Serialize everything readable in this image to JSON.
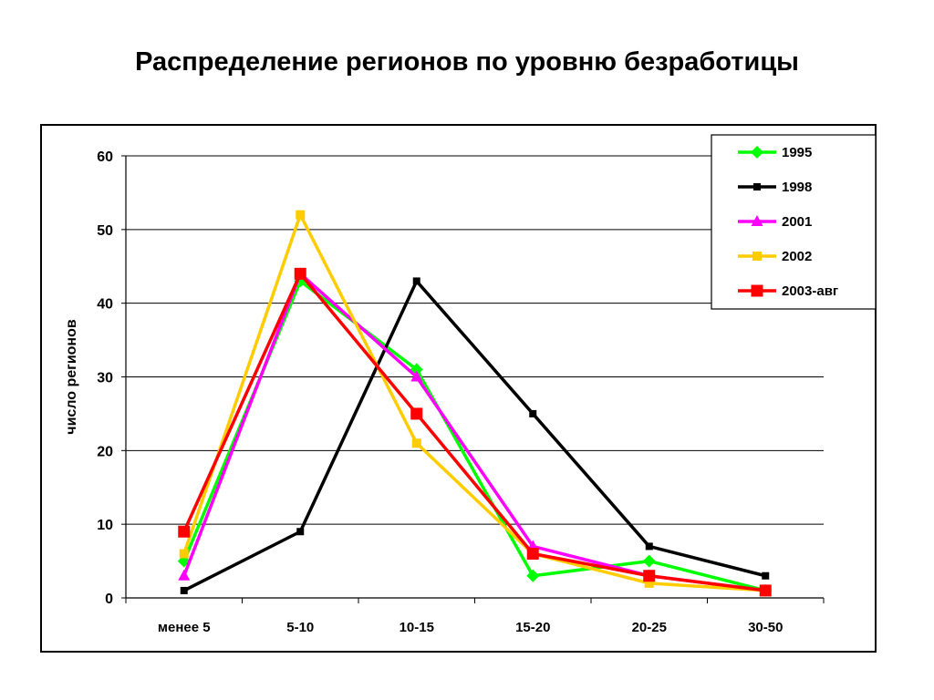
{
  "title": "Распределение регионов по уровню безработицы",
  "chart_data": {
    "type": "line",
    "title": "Распределение регионов по уровню безработицы",
    "xlabel": "",
    "ylabel": "число регионов",
    "categories": [
      "менее 5",
      "5-10",
      "10-15",
      "15-20",
      "20-25",
      "30-50"
    ],
    "ylim": [
      0,
      60
    ],
    "yticks": [
      0,
      10,
      20,
      30,
      40,
      50,
      60
    ],
    "grid": true,
    "legend": "top-right",
    "series": [
      {
        "name": "1995",
        "color": "#00ff00",
        "marker": "diamond",
        "values": [
          5,
          43,
          31,
          3,
          5,
          1
        ]
      },
      {
        "name": "1998",
        "color": "#000000",
        "marker": "square-small",
        "values": [
          1,
          9,
          43,
          25,
          7,
          3
        ]
      },
      {
        "name": "2001",
        "color": "#ff00ff",
        "marker": "triangle",
        "values": [
          3,
          44,
          30,
          7,
          3,
          1
        ]
      },
      {
        "name": "2002",
        "color": "#ffcc00",
        "marker": "square",
        "values": [
          6,
          52,
          21,
          6,
          2,
          1
        ]
      },
      {
        "name": "2003-авг",
        "color": "#ff0000",
        "marker": "square-large",
        "values": [
          9,
          44,
          25,
          6,
          3,
          1
        ]
      }
    ]
  }
}
